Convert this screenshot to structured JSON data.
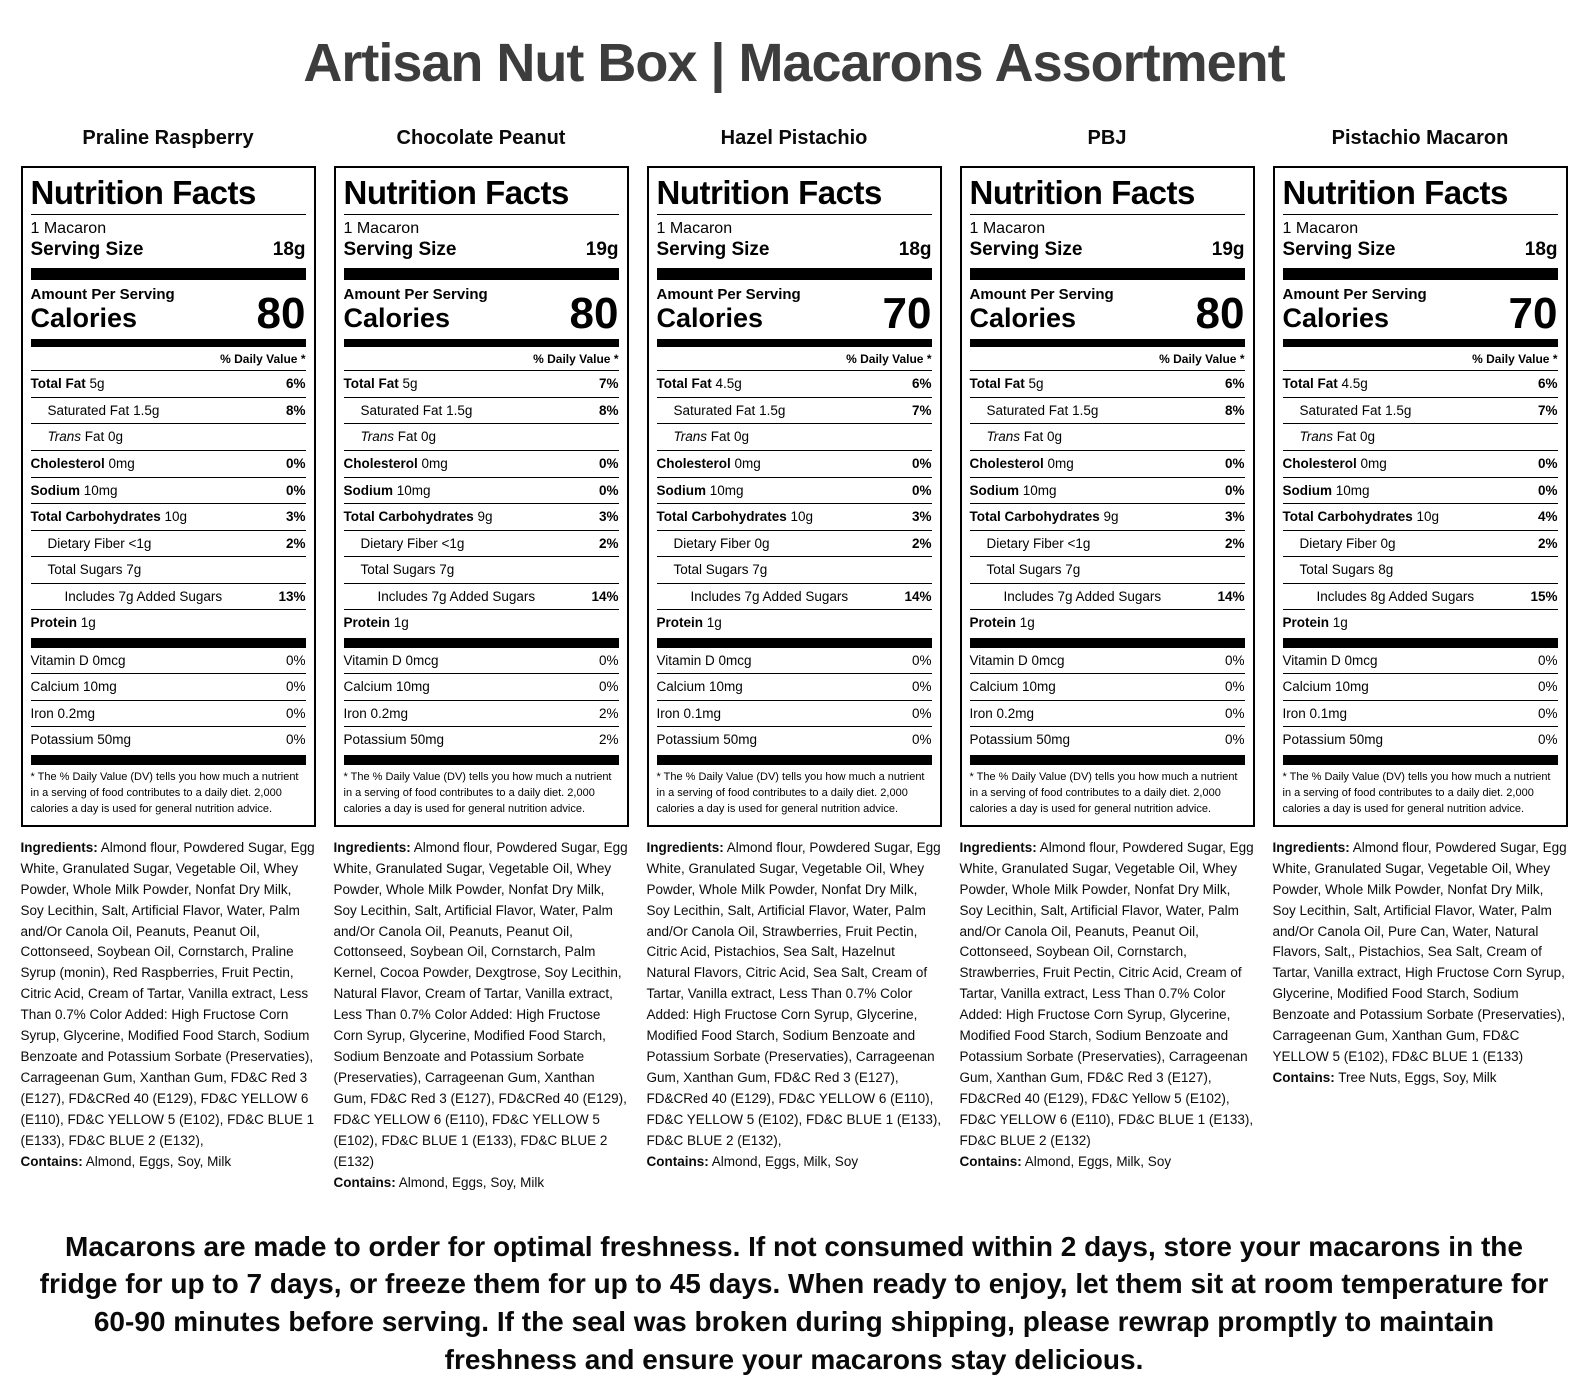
{
  "page_title": "Artisan Nut Box | Macarons Assortment",
  "footer_note": "Macarons are made to order for optimal freshness. If not consumed within 2 days, store your macarons in the fridge for up to 7 days, or freeze them for up to 45 days. When ready to enjoy, let them sit at room temperature for 60-90 minutes before serving. If the seal was broken during shipping, please rewrap promptly to maintain freshness and ensure your macarons stay delicious.",
  "labels": [
    {
      "flavor": "Praline Raspberry",
      "heading": "Nutrition Facts",
      "serving_desc": "1 Macaron",
      "serving_size_label": "Serving Size",
      "serving_size": "18g",
      "amount_per_serving": "Amount Per Serving",
      "calories_label": "Calories",
      "calories": "80",
      "daily_value_header": "% Daily Value *",
      "nutrients": [
        {
          "name": "Total Fat",
          "value": "5g",
          "dv": "6%",
          "type": "main"
        },
        {
          "name": "Saturated Fat",
          "value": "1.5g",
          "dv": "8%",
          "type": "sub"
        },
        {
          "name": "Trans",
          "name2": " Fat",
          "value": "0g",
          "dv": "",
          "type": "sub-italic"
        },
        {
          "name": "Cholesterol",
          "value": "0mg",
          "dv": "0%",
          "type": "main"
        },
        {
          "name": "Sodium",
          "value": "10mg",
          "dv": "0%",
          "type": "main"
        },
        {
          "name": "Total Carbohydrates",
          "value": "10g",
          "dv": "3%",
          "type": "main"
        },
        {
          "name": "Dietary Fiber",
          "value": "<1g",
          "dv": "2%",
          "type": "sub"
        },
        {
          "name": "Total Sugars",
          "value": "7g",
          "dv": "",
          "type": "sub"
        },
        {
          "name": "Includes 7g Added Sugars",
          "value": "",
          "dv": "13%",
          "type": "sub2"
        },
        {
          "name": "Protein",
          "value": "1g",
          "dv": "",
          "type": "main"
        }
      ],
      "vitamins": [
        {
          "name": "Vitamin D",
          "value": "0mcg",
          "dv": "0%"
        },
        {
          "name": "Calcium",
          "value": "10mg",
          "dv": "0%"
        },
        {
          "name": "Iron",
          "value": "0.2mg",
          "dv": "0%"
        },
        {
          "name": "Potassium",
          "value": "50mg",
          "dv": "0%"
        }
      ],
      "footnote": "* The % Daily Value (DV) tells you how much a nutrient in a serving of food contributes to a daily diet. 2,000 calories a day is used for general nutrition advice.",
      "ingredients_label": "Ingredients:",
      "ingredients": "Almond flour, Powdered Sugar, Egg White, Granulated Sugar, Vegetable Oil, Whey Powder, Whole Milk Powder, Nonfat Dry Milk, Soy Lecithin, Salt, Artificial Flavor, Water, Palm and/Or Canola Oil, Peanuts, Peanut Oil, Cottonseed, Soybean Oil, Cornstarch, Praline Syrup (monin), Red Raspberries, Fruit Pectin, Citric Acid, Cream of Tartar, Vanilla extract, Less Than 0.7% Color Added: High Fructose Corn Syrup, Glycerine, Modified Food Starch, Sodium Benzoate and Potassium Sorbate (Preservaties), Carrageenan Gum, Xanthan Gum, FD&C Red 3 (E127), FD&CRed 40 (E129), FD&C YELLOW 6 (E110), FD&C YELLOW 5 (E102), FD&C BLUE 1 (E133), FD&C BLUE 2 (E132),",
      "contains_label": "Contains:",
      "contains": "Almond, Eggs, Soy, Milk"
    },
    {
      "flavor": "Chocolate Peanut",
      "heading": "Nutrition Facts",
      "serving_desc": "1 Macaron",
      "serving_size_label": "Serving Size",
      "serving_size": "19g",
      "amount_per_serving": "Amount Per Serving",
      "calories_label": "Calories",
      "calories": "80",
      "daily_value_header": "% Daily Value *",
      "nutrients": [
        {
          "name": "Total Fat",
          "value": "5g",
          "dv": "7%",
          "type": "main"
        },
        {
          "name": "Saturated Fat",
          "value": "1.5g",
          "dv": "8%",
          "type": "sub"
        },
        {
          "name": "Trans",
          "name2": " Fat",
          "value": "0g",
          "dv": "",
          "type": "sub-italic"
        },
        {
          "name": "Cholesterol",
          "value": "0mg",
          "dv": "0%",
          "type": "main"
        },
        {
          "name": "Sodium",
          "value": "10mg",
          "dv": "0%",
          "type": "main"
        },
        {
          "name": "Total Carbohydrates",
          "value": "9g",
          "dv": "3%",
          "type": "main"
        },
        {
          "name": "Dietary Fiber",
          "value": "<1g",
          "dv": "2%",
          "type": "sub"
        },
        {
          "name": "Total Sugars",
          "value": "7g",
          "dv": "",
          "type": "sub"
        },
        {
          "name": "Includes 7g Added Sugars",
          "value": "",
          "dv": "14%",
          "type": "sub2"
        },
        {
          "name": "Protein",
          "value": "1g",
          "dv": "",
          "type": "main"
        }
      ],
      "vitamins": [
        {
          "name": "Vitamin D",
          "value": "0mcg",
          "dv": "0%"
        },
        {
          "name": "Calcium",
          "value": "10mg",
          "dv": "0%"
        },
        {
          "name": "Iron",
          "value": "0.2mg",
          "dv": "2%"
        },
        {
          "name": "Potassium",
          "value": "50mg",
          "dv": "2%"
        }
      ],
      "footnote": "* The % Daily Value (DV) tells you how much a nutrient in a serving of food contributes to a daily diet. 2,000 calories a day is used for general nutrition advice.",
      "ingredients_label": "Ingredients:",
      "ingredients": "Almond flour, Powdered Sugar, Egg White, Granulated Sugar, Vegetable Oil, Whey Powder, Whole Milk Powder, Nonfat Dry Milk, Soy Lecithin, Salt, Artificial Flavor, Water, Palm and/Or Canola Oil, Peanuts, Peanut Oil, Cottonseed, Soybean Oil, Cornstarch, Palm Kernel, Cocoa Powder, Dexgtrose, Soy Lecithin, Natural Flavor, Cream of Tartar, Vanilla extract, Less Than 0.7% Color Added: High Fructose Corn Syrup, Glycerine, Modified Food Starch, Sodium Benzoate and Potassium Sorbate (Preservaties), Carrageenan Gum, Xanthan Gum, FD&C Red 3 (E127), FD&CRed 40 (E129), FD&C YELLOW 6 (E110), FD&C YELLOW 5 (E102), FD&C BLUE 1 (E133), FD&C BLUE 2 (E132)",
      "contains_label": "Contains:",
      "contains": "Almond, Eggs, Soy, Milk"
    },
    {
      "flavor": "Hazel Pistachio",
      "heading": "Nutrition Facts",
      "serving_desc": "1 Macaron",
      "serving_size_label": "Serving Size",
      "serving_size": "18g",
      "amount_per_serving": "Amount Per Serving",
      "calories_label": "Calories",
      "calories": "70",
      "daily_value_header": "% Daily Value *",
      "nutrients": [
        {
          "name": "Total Fat",
          "value": "4.5g",
          "dv": "6%",
          "type": "main"
        },
        {
          "name": "Saturated Fat",
          "value": "1.5g",
          "dv": "7%",
          "type": "sub"
        },
        {
          "name": "Trans",
          "name2": " Fat",
          "value": "0g",
          "dv": "",
          "type": "sub-italic"
        },
        {
          "name": "Cholesterol",
          "value": "0mg",
          "dv": "0%",
          "type": "main"
        },
        {
          "name": "Sodium",
          "value": "10mg",
          "dv": "0%",
          "type": "main"
        },
        {
          "name": "Total Carbohydrates",
          "value": "10g",
          "dv": "3%",
          "type": "main"
        },
        {
          "name": "Dietary Fiber",
          "value": "0g",
          "dv": "2%",
          "type": "sub"
        },
        {
          "name": "Total Sugars",
          "value": "7g",
          "dv": "",
          "type": "sub"
        },
        {
          "name": "Includes 7g Added Sugars",
          "value": "",
          "dv": "14%",
          "type": "sub2"
        },
        {
          "name": "Protein",
          "value": "1g",
          "dv": "",
          "type": "main"
        }
      ],
      "vitamins": [
        {
          "name": "Vitamin D",
          "value": "0mcg",
          "dv": "0%"
        },
        {
          "name": "Calcium",
          "value": "10mg",
          "dv": "0%"
        },
        {
          "name": "Iron",
          "value": "0.1mg",
          "dv": "0%"
        },
        {
          "name": "Potassium",
          "value": "50mg",
          "dv": "0%"
        }
      ],
      "footnote": "* The % Daily Value (DV) tells you how much a nutrient in a serving of food contributes to a daily diet. 2,000 calories a day is used for general nutrition advice.",
      "ingredients_label": "Ingredients:",
      "ingredients": "Almond flour, Powdered Sugar, Egg White, Granulated Sugar, Vegetable Oil, Whey Powder, Whole Milk Powder, Nonfat Dry Milk, Soy Lecithin, Salt, Artificial Flavor, Water, Palm and/Or Canola Oil, Strawberries, Fruit Pectin, Citric Acid, Pistachios, Sea Salt, Hazelnut Natural Flavors, Citric Acid, Sea Salt, Cream of Tartar, Vanilla extract, Less Than 0.7% Color Added: High Fructose Corn Syrup, Glycerine, Modified Food Starch, Sodium Benzoate and Potassium Sorbate (Preservaties), Carrageenan Gum, Xanthan Gum, FD&C Red 3 (E127), FD&CRed 40 (E129), FD&C YELLOW 6 (E110), FD&C YELLOW 5 (E102), FD&C BLUE 1 (E133), FD&C BLUE 2 (E132),",
      "contains_label": "Contains:",
      "contains": "Almond, Eggs, Milk, Soy"
    },
    {
      "flavor": "PBJ",
      "heading": "Nutrition Facts",
      "serving_desc": "1 Macaron",
      "serving_size_label": "Serving Size",
      "serving_size": "19g",
      "amount_per_serving": "Amount Per Serving",
      "calories_label": "Calories",
      "calories": "80",
      "daily_value_header": "% Daily Value *",
      "nutrients": [
        {
          "name": "Total Fat",
          "value": "5g",
          "dv": "6%",
          "type": "main"
        },
        {
          "name": "Saturated Fat",
          "value": "1.5g",
          "dv": "8%",
          "type": "sub"
        },
        {
          "name": "Trans",
          "name2": " Fat",
          "value": "0g",
          "dv": "",
          "type": "sub-italic"
        },
        {
          "name": "Cholesterol",
          "value": "0mg",
          "dv": "0%",
          "type": "main"
        },
        {
          "name": "Sodium",
          "value": "10mg",
          "dv": "0%",
          "type": "main"
        },
        {
          "name": "Total Carbohydrates",
          "value": "9g",
          "dv": "3%",
          "type": "main"
        },
        {
          "name": "Dietary Fiber",
          "value": "<1g",
          "dv": "2%",
          "type": "sub"
        },
        {
          "name": "Total Sugars",
          "value": "7g",
          "dv": "",
          "type": "sub"
        },
        {
          "name": "Includes 7g Added Sugars",
          "value": "",
          "dv": "14%",
          "type": "sub2"
        },
        {
          "name": "Protein",
          "value": "1g",
          "dv": "",
          "type": "main"
        }
      ],
      "vitamins": [
        {
          "name": "Vitamin D",
          "value": "0mcg",
          "dv": "0%"
        },
        {
          "name": "Calcium",
          "value": "10mg",
          "dv": "0%"
        },
        {
          "name": "Iron",
          "value": "0.2mg",
          "dv": "0%"
        },
        {
          "name": "Potassium",
          "value": "50mg",
          "dv": "0%"
        }
      ],
      "footnote": "* The % Daily Value (DV) tells you how much a nutrient in a serving of food contributes to a daily diet. 2,000 calories a day is used for general nutrition advice.",
      "ingredients_label": "Ingredients:",
      "ingredients": "Almond flour, Powdered Sugar, Egg White, Granulated Sugar, Vegetable Oil, Whey Powder, Whole Milk Powder, Nonfat Dry Milk, Soy Lecithin, Salt, Artificial Flavor, Water, Palm and/Or Canola Oil, Peanuts, Peanut Oil, Cottonseed, Soybean Oil, Cornstarch, Strawberries, Fruit Pectin, Citric Acid, Cream of Tartar, Vanilla extract, Less Than 0.7% Color Added: High Fructose Corn Syrup, Glycerine, Modified Food Starch, Sodium Benzoate and Potassium Sorbate (Preservaties), Carrageenan Gum, Xanthan Gum, FD&C Red 3 (E127), FD&CRed 40 (E129), FD&C Yellow 5 (E102), FD&C YELLOW 6 (E110), FD&C BLUE 1 (E133), FD&C BLUE 2 (E132)",
      "contains_label": "Contains:",
      "contains": "Almond, Eggs, Milk, Soy"
    },
    {
      "flavor": "Pistachio Macaron",
      "heading": "Nutrition Facts",
      "serving_desc": "1 Macaron",
      "serving_size_label": "Serving Size",
      "serving_size": "18g",
      "amount_per_serving": "Amount Per Serving",
      "calories_label": "Calories",
      "calories": "70",
      "daily_value_header": "% Daily Value *",
      "nutrients": [
        {
          "name": "Total Fat",
          "value": "4.5g",
          "dv": "6%",
          "type": "main"
        },
        {
          "name": "Saturated Fat",
          "value": "1.5g",
          "dv": "7%",
          "type": "sub"
        },
        {
          "name": "Trans",
          "name2": " Fat",
          "value": "0g",
          "dv": "",
          "type": "sub-italic"
        },
        {
          "name": "Cholesterol",
          "value": "0mg",
          "dv": "0%",
          "type": "main"
        },
        {
          "name": "Sodium",
          "value": "10mg",
          "dv": "0%",
          "type": "main"
        },
        {
          "name": "Total Carbohydrates",
          "value": "10g",
          "dv": "4%",
          "type": "main"
        },
        {
          "name": "Dietary Fiber",
          "value": "0g",
          "dv": "2%",
          "type": "sub"
        },
        {
          "name": "Total Sugars",
          "value": "8g",
          "dv": "",
          "type": "sub"
        },
        {
          "name": "Includes 8g Added Sugars",
          "value": "",
          "dv": "15%",
          "type": "sub2"
        },
        {
          "name": "Protein",
          "value": "1g",
          "dv": "",
          "type": "main"
        }
      ],
      "vitamins": [
        {
          "name": "Vitamin D",
          "value": "0mcg",
          "dv": "0%"
        },
        {
          "name": "Calcium",
          "value": "10mg",
          "dv": "0%"
        },
        {
          "name": "Iron",
          "value": "0.1mg",
          "dv": "0%"
        },
        {
          "name": "Potassium",
          "value": "50mg",
          "dv": "0%"
        }
      ],
      "footnote": "* The % Daily Value (DV) tells you how much a nutrient in a serving of food contributes to a daily diet. 2,000 calories a day is used for general nutrition advice.",
      "ingredients_label": "Ingredients:",
      "ingredients": "Almond flour, Powdered Sugar, Egg White, Granulated Sugar, Vegetable Oil, Whey Powder, Whole Milk Powder, Nonfat Dry Milk, Soy Lecithin, Salt, Artificial Flavor, Water, Palm and/Or Canola Oil, Pure Can, Water, Natural Flavors, Salt,, Pistachios, Sea Salt, Cream of Tartar, Vanilla extract, High Fructose Corn Syrup, Glycerine, Modified Food Starch, Sodium Benzoate and Potassium Sorbate (Preservaties), Carrageenan Gum, Xanthan Gum, FD&C YELLOW 5 (E102), FD&C BLUE 1 (E133)",
      "contains_label": "Contains:",
      "contains": "Tree Nuts, Eggs, Soy, Milk"
    }
  ]
}
